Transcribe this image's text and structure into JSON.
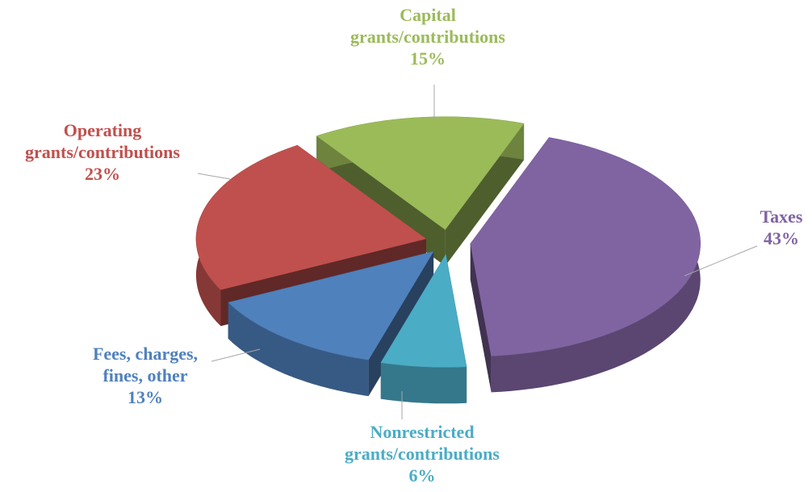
{
  "chart_data": {
    "type": "pie",
    "view": "3d-exploded",
    "categories": [
      "Taxes",
      "Nonrestricted grants/contributions",
      "Fees, charges, fines, other",
      "Operating grants/contributions",
      "Capital grants/contributions"
    ],
    "values": [
      43,
      6,
      13,
      23,
      15
    ],
    "value_labels": [
      "43%",
      "6%",
      "13%",
      "23%",
      "15%"
    ],
    "colors": [
      "#8064a2",
      "#4bacc6",
      "#4f81bd",
      "#c0504d",
      "#9bbb59"
    ]
  }
}
